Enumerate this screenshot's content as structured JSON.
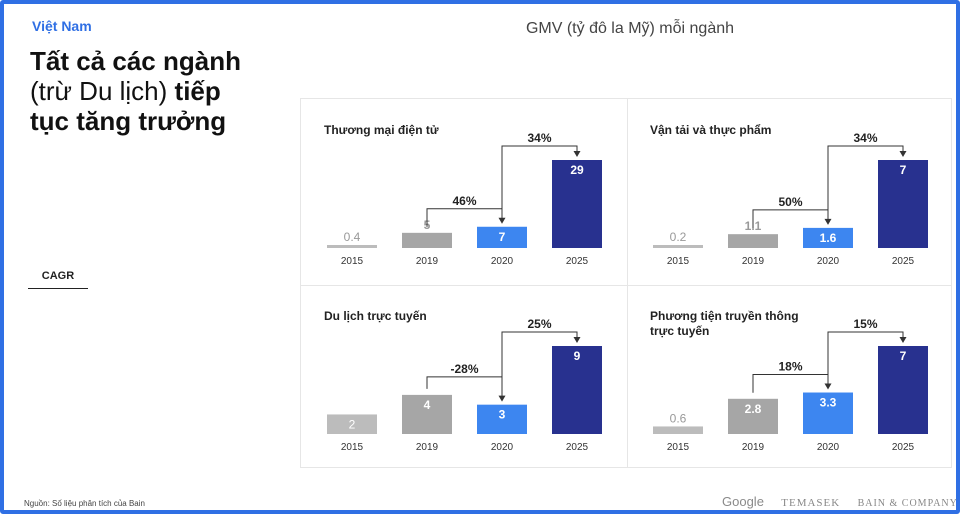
{
  "header": {
    "country": "Việt Nam",
    "headline_part1": "Tất cả các ngành",
    "headline_part2": "(trừ Du lịch)",
    "headline_part3": "tiếp tục tăng trưởng"
  },
  "side_label": "CAGR",
  "chart_title": "GMV (tỷ đô la Mỹ) mỗi ngành",
  "footer": {
    "source": "Nguồn: Số liệu phân tích của Bain",
    "logo_google": "Google",
    "logo_temasek": "TEMASEK",
    "logo_bain": "BAIN & COMPANY"
  },
  "colors": {
    "y2015": "#bcbcbc",
    "y2019": "#a6a6a6",
    "y2020": "#3d86f0",
    "y2025": "#28318f",
    "connector": "#333333"
  },
  "chart_data": [
    {
      "type": "bar",
      "title": "Thương mại điện tử",
      "categories": [
        "2015",
        "2019",
        "2020",
        "2025"
      ],
      "values": [
        0.4,
        5,
        7,
        29
      ],
      "value_labels": [
        "0.4",
        "5",
        "7",
        "29"
      ],
      "cagr": [
        {
          "from": "2019",
          "to": "2020",
          "label": "46%"
        },
        {
          "from": "2020",
          "to": "2025",
          "label": "34%"
        }
      ]
    },
    {
      "type": "bar",
      "title": "Vận tải và thực phẩm",
      "categories": [
        "2015",
        "2019",
        "2020",
        "2025"
      ],
      "values": [
        0.2,
        1.1,
        1.6,
        7
      ],
      "value_labels": [
        "0.2",
        "1.1",
        "1.6",
        "7"
      ],
      "cagr": [
        {
          "from": "2019",
          "to": "2020",
          "label": "50%"
        },
        {
          "from": "2020",
          "to": "2025",
          "label": "34%"
        }
      ]
    },
    {
      "type": "bar",
      "title": "Du lịch trực tuyến",
      "categories": [
        "2015",
        "2019",
        "2020",
        "2025"
      ],
      "values": [
        2,
        4,
        3,
        9
      ],
      "value_labels": [
        "2",
        "4",
        "3",
        "9"
      ],
      "cagr": [
        {
          "from": "2019",
          "to": "2020",
          "label": "-28%"
        },
        {
          "from": "2020",
          "to": "2025",
          "label": "25%"
        }
      ]
    },
    {
      "type": "bar",
      "title": "Phương tiện truyền thông trực tuyến",
      "categories": [
        "2015",
        "2019",
        "2020",
        "2025"
      ],
      "values": [
        0.6,
        2.8,
        3.3,
        7
      ],
      "value_labels": [
        "0.6",
        "2.8",
        "3.3",
        "7"
      ],
      "cagr": [
        {
          "from": "2019",
          "to": "2020",
          "label": "18%"
        },
        {
          "from": "2020",
          "to": "2025",
          "label": "15%"
        }
      ]
    }
  ]
}
